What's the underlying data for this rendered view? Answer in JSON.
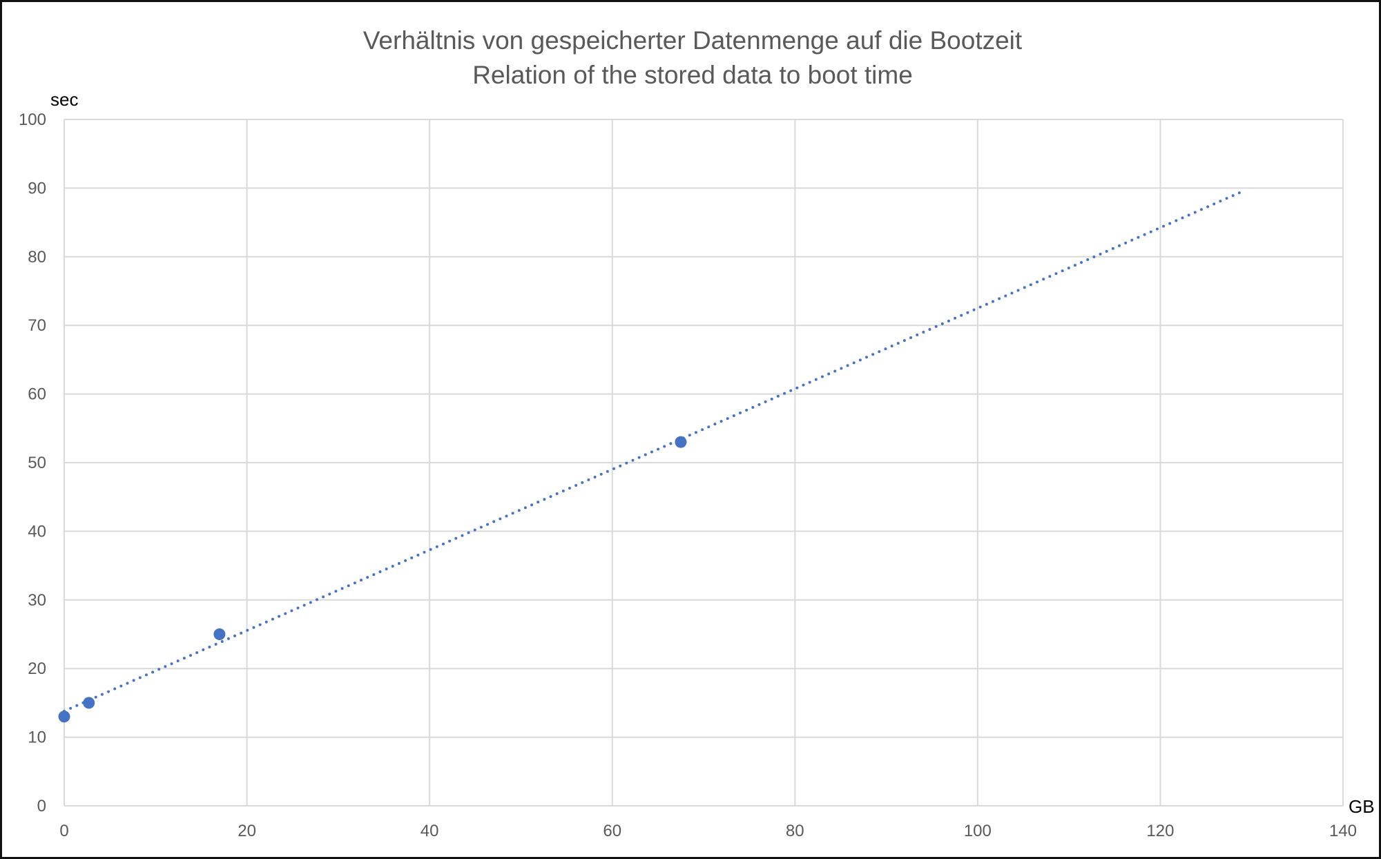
{
  "chart_data": {
    "type": "scatter",
    "title": [
      "Verhältnis von gespeicherter Datenmenge auf die Bootzeit",
      "Relation of the stored data to boot time"
    ],
    "xlabel": "GB",
    "ylabel": "sec",
    "xlim": [
      0,
      140
    ],
    "ylim": [
      0,
      100
    ],
    "xticks": [
      0,
      20,
      40,
      60,
      80,
      100,
      120,
      140
    ],
    "yticks": [
      0,
      10,
      20,
      30,
      40,
      50,
      60,
      70,
      80,
      90,
      100
    ],
    "grid": true,
    "series": [
      {
        "points": [
          [
            0,
            13
          ],
          [
            2.7,
            15
          ],
          [
            17,
            25
          ],
          [
            67.5,
            53
          ]
        ],
        "color": "#4472C4"
      }
    ],
    "trendline": {
      "type": "linear",
      "style": "dotted",
      "color": "#4472C4",
      "x_range": [
        0,
        129
      ],
      "intercept": 13.8,
      "slope": 0.587
    }
  }
}
